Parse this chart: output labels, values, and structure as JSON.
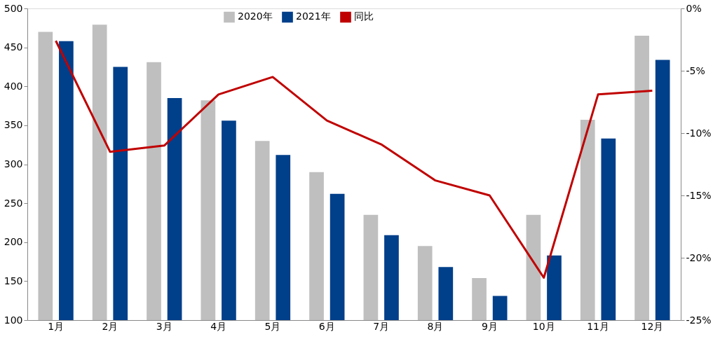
{
  "chart_data": {
    "type": "bar",
    "categories": [
      "1月",
      "2月",
      "3月",
      "4月",
      "5月",
      "6月",
      "7月",
      "8月",
      "9月",
      "10月",
      "11月",
      "12月"
    ],
    "series": [
      {
        "name": "2020年",
        "color": "#bfbfbf",
        "values": [
          470,
          479,
          431,
          382,
          330,
          290,
          235,
          195,
          154,
          235,
          357,
          465
        ]
      },
      {
        "name": "2021年",
        "color": "#003f8a",
        "values": [
          458,
          425,
          385,
          356,
          312,
          262,
          209,
          168,
          131,
          183,
          333,
          434
        ]
      },
      {
        "name": "同比",
        "type": "line",
        "axis": "y2",
        "color": "#c00000",
        "values": [
          -2.6,
          -11.5,
          -11.0,
          -6.9,
          -5.5,
          -9.0,
          -10.9,
          -13.8,
          -15.0,
          -21.6,
          -6.9,
          -6.6
        ]
      }
    ],
    "ylim": [
      100,
      500
    ],
    "yticks": [
      100,
      150,
      200,
      250,
      300,
      350,
      400,
      450,
      500
    ],
    "y2lim": [
      -25,
      0
    ],
    "y2ticks": [
      {
        "value": -25,
        "label": "-25%"
      },
      {
        "value": -20,
        "label": "-20%"
      },
      {
        "value": -15,
        "label": "-15%"
      },
      {
        "value": -10,
        "label": "-10%"
      },
      {
        "value": -5,
        "label": "-5%"
      },
      {
        "value": 0,
        "label": "0%"
      }
    ],
    "legend": "top",
    "grid": false,
    "marker": "none",
    "line_style": "solid"
  }
}
